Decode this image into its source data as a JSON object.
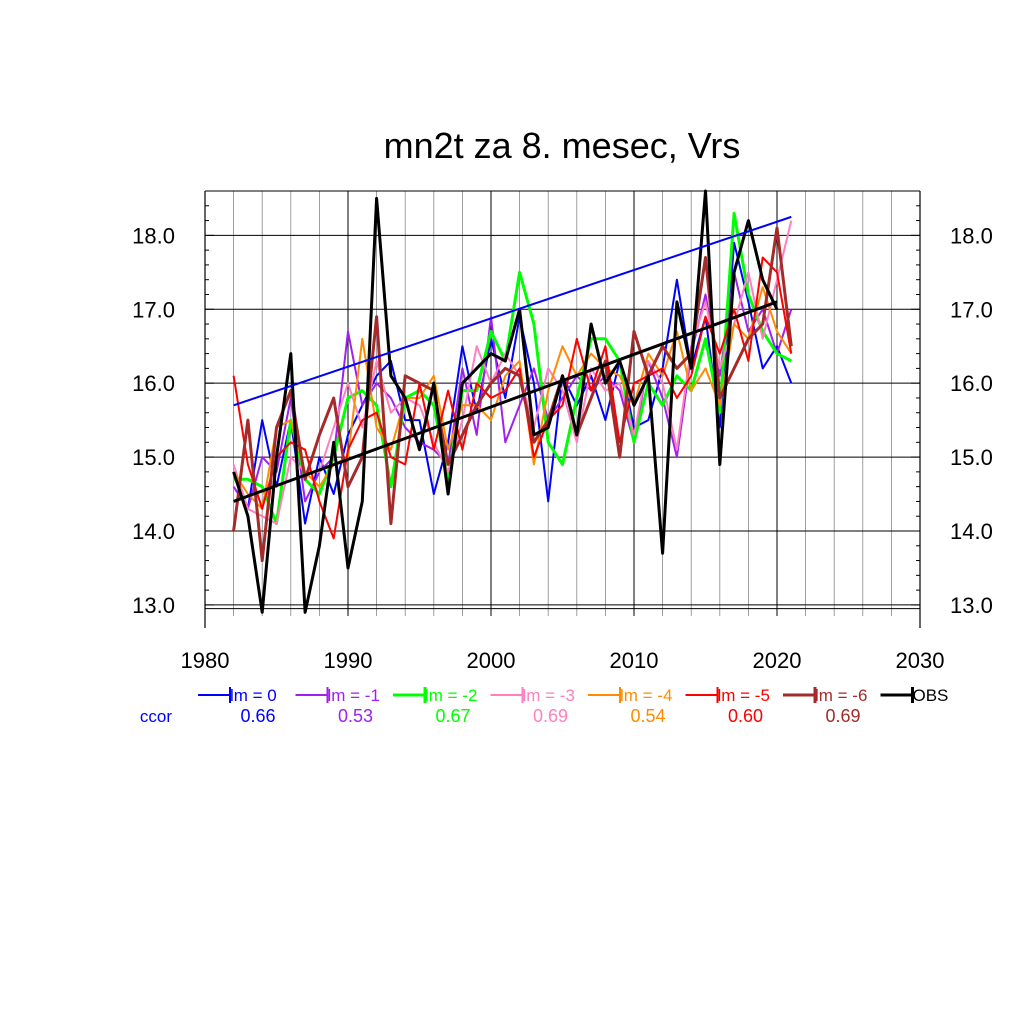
{
  "chart_data": {
    "type": "line",
    "title": "mn2t za 8. mesec, Vrs",
    "xlabel": "",
    "ylabel": "",
    "xlim": [
      1980,
      2030
    ],
    "ylim": [
      12.85,
      18.6
    ],
    "x_ticks": [
      1980,
      1990,
      2000,
      2010,
      2020,
      2030
    ],
    "x_tick_labels": [
      "1980",
      "1990",
      "2000",
      "2010",
      "2020",
      "2030"
    ],
    "y_ticks": [
      13,
      14,
      15,
      16,
      17,
      18
    ],
    "y_tick_labels": [
      "13.0",
      "14.0",
      "15.0",
      "16.0",
      "17.0",
      "18.0"
    ],
    "grid": true,
    "legend_position": "bottom",
    "ccor_label": "ccor",
    "ccor_color": "#0000ff",
    "x": [
      1982,
      1983,
      1984,
      1985,
      1986,
      1987,
      1988,
      1989,
      1990,
      1991,
      1992,
      1993,
      1994,
      1995,
      1996,
      1997,
      1998,
      1999,
      2000,
      2001,
      2002,
      2003,
      2004,
      2005,
      2006,
      2007,
      2008,
      2009,
      2010,
      2011,
      2012,
      2013,
      2014,
      2015,
      2016,
      2017,
      2018,
      2019,
      2020,
      2021
    ],
    "series": [
      {
        "name": "lm = 0",
        "color": "#0000ff",
        "width": 2,
        "ccor": "0.66",
        "values": [
          14.8,
          14.3,
          15.5,
          14.6,
          15.5,
          14.1,
          15.0,
          14.5,
          15.3,
          15.7,
          16.1,
          16.3,
          15.5,
          15.5,
          14.5,
          15.2,
          16.5,
          15.6,
          16.6,
          15.8,
          16.9,
          16.0,
          14.4,
          16.1,
          15.7,
          16.1,
          15.5,
          16.3,
          15.4,
          15.5,
          16.2,
          17.4,
          16.2,
          16.9,
          15.4,
          17.9,
          17.1,
          16.2,
          16.5,
          16.0
        ]
      },
      {
        "name": "lm = -1",
        "color": "#a020f0",
        "width": 2,
        "ccor": "0.53",
        "values": [
          14.6,
          14.3,
          15.0,
          14.8,
          15.8,
          14.4,
          14.8,
          15.0,
          16.7,
          15.7,
          16.0,
          15.8,
          15.4,
          15.2,
          15.1,
          14.9,
          16.2,
          15.3,
          16.9,
          15.2,
          15.7,
          16.2,
          15.5,
          15.8,
          16.1,
          15.9,
          16.1,
          15.9,
          15.2,
          16.3,
          15.8,
          15.0,
          16.4,
          17.2,
          16.1,
          17.5,
          16.7,
          17.0,
          16.4,
          17.0
        ]
      },
      {
        "name": "lm = -2",
        "color": "#00ff00",
        "width": 3,
        "ccor": "0.67",
        "values": [
          14.7,
          14.7,
          14.6,
          14.1,
          15.5,
          14.7,
          14.5,
          15.0,
          15.8,
          15.9,
          15.7,
          14.6,
          15.8,
          15.9,
          15.7,
          14.7,
          15.9,
          15.9,
          16.7,
          16.3,
          17.5,
          16.8,
          15.2,
          14.9,
          15.8,
          16.6,
          16.6,
          16.3,
          15.2,
          16.0,
          15.7,
          16.1,
          15.9,
          16.6,
          15.6,
          18.3,
          17.2,
          16.7,
          16.4,
          16.3
        ]
      },
      {
        "name": "lm = -3",
        "color": "#ff7fbf",
        "width": 2,
        "ccor": "0.69",
        "values": [
          14.9,
          14.3,
          14.2,
          14.1,
          15.0,
          14.8,
          14.8,
          15.4,
          16.0,
          15.4,
          16.3,
          15.6,
          15.8,
          15.7,
          15.2,
          14.8,
          15.5,
          16.5,
          16.0,
          16.4,
          16.1,
          15.4,
          16.2,
          15.9,
          15.2,
          16.2,
          15.9,
          16.0,
          15.3,
          16.3,
          16.0,
          15.1,
          16.5,
          17.1,
          16.2,
          16.8,
          17.5,
          16.6,
          17.4,
          18.2
        ]
      },
      {
        "name": "lm = -4",
        "color": "#ff8c00",
        "width": 2,
        "ccor": "0.54",
        "values": [
          14.8,
          14.5,
          14.3,
          15.4,
          15.5,
          14.8,
          14.6,
          14.9,
          15.0,
          16.6,
          15.4,
          15.1,
          15.8,
          15.8,
          16.1,
          15.1,
          15.7,
          15.7,
          15.5,
          16.1,
          16.3,
          14.9,
          15.9,
          16.5,
          16.1,
          16.4,
          16.2,
          16.1,
          15.7,
          16.4,
          16.1,
          16.7,
          15.9,
          16.2,
          15.7,
          16.8,
          16.6,
          17.3,
          16.7,
          16.4
        ]
      },
      {
        "name": "lm = -5",
        "color": "#ff0000",
        "width": 2,
        "ccor": "0.60",
        "values": [
          16.1,
          14.9,
          14.3,
          15.0,
          15.2,
          15.1,
          14.4,
          13.9,
          15.1,
          15.5,
          15.6,
          15.0,
          14.9,
          16.0,
          15.1,
          15.9,
          15.1,
          16.0,
          15.8,
          15.9,
          16.2,
          15.0,
          15.5,
          15.7,
          16.6,
          15.9,
          16.5,
          15.2,
          16.0,
          16.1,
          16.2,
          15.8,
          16.1,
          16.9,
          16.4,
          17.0,
          16.3,
          17.7,
          17.5,
          16.4
        ]
      },
      {
        "name": "lm = -6",
        "color": "#a52a2a",
        "width": 3,
        "ccor": "0.69",
        "values": [
          14.0,
          15.5,
          13.6,
          15.4,
          15.9,
          14.7,
          15.3,
          15.8,
          14.6,
          15.0,
          16.9,
          14.1,
          16.1,
          16.0,
          15.9,
          14.9,
          15.3,
          15.7,
          16.0,
          16.2,
          16.1,
          15.2,
          15.5,
          16.1,
          15.3,
          15.8,
          16.3,
          15.0,
          16.7,
          16.1,
          16.5,
          16.2,
          16.4,
          17.7,
          15.8,
          16.2,
          16.6,
          16.8,
          18.1,
          16.5
        ]
      },
      {
        "name": "OBS",
        "color": "#000000",
        "width": 3,
        "ccor": "",
        "values": [
          14.8,
          14.2,
          12.9,
          15.0,
          16.4,
          12.9,
          13.8,
          15.2,
          13.5,
          14.4,
          18.5,
          16.1,
          15.8,
          15.1,
          16.0,
          14.5,
          16.0,
          16.2,
          16.4,
          16.3,
          17.0,
          15.3,
          15.4,
          16.1,
          15.3,
          16.8,
          16.0,
          16.3,
          15.7,
          16.1,
          13.7,
          17.1,
          16.2,
          18.6,
          14.9,
          17.5,
          18.2,
          17.4,
          17.0,
          null
        ]
      }
    ],
    "trend_lines": [
      {
        "color": "#0000ff",
        "width": 2,
        "x": [
          1982,
          2021
        ],
        "y": [
          15.7,
          18.25
        ]
      },
      {
        "color": "#000000",
        "width": 3,
        "x": [
          1982,
          2020
        ],
        "y": [
          14.4,
          17.1
        ]
      }
    ]
  }
}
